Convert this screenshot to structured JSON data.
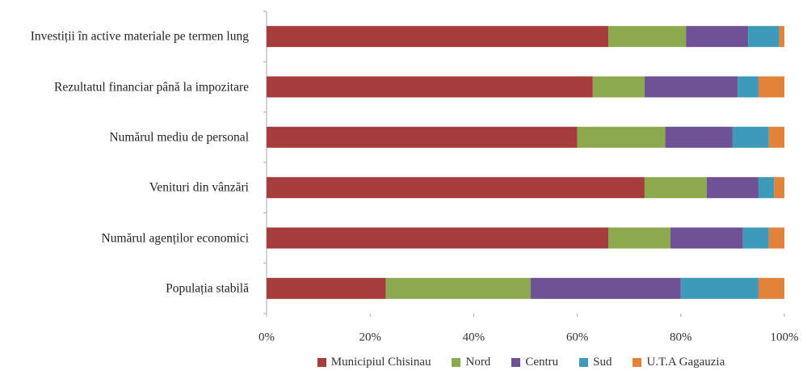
{
  "chart_data": {
    "type": "stacked-bar-horizontal",
    "categories": [
      "Investiții în active materiale pe termen lung",
      "Rezultatul financiar până la impozitare",
      "Numărul mediu de personal",
      "Venituri din vânzări",
      "Numărul agenților economici",
      "Populația stabilă"
    ],
    "series": [
      {
        "name": "Municipiul Chisinau",
        "color": "#a63c3b",
        "values": [
          66,
          63,
          60,
          73,
          66,
          23
        ]
      },
      {
        "name": "Nord",
        "color": "#8caa4d",
        "values": [
          15,
          10,
          17,
          12,
          12,
          28
        ]
      },
      {
        "name": "Centru",
        "color": "#6f5196",
        "values": [
          12,
          18,
          13,
          10,
          14,
          29
        ]
      },
      {
        "name": "Sud",
        "color": "#3d9bb9",
        "values": [
          6,
          4,
          7,
          3,
          5,
          15
        ]
      },
      {
        "name": "U.T.A Gagauzia",
        "color": "#e2823b",
        "values": [
          1,
          5,
          3,
          2,
          3,
          5
        ]
      }
    ],
    "xlim": [
      0,
      100
    ],
    "xticks": [
      {
        "value": 0,
        "label": "0%"
      },
      {
        "value": 20,
        "label": "20%"
      },
      {
        "value": 40,
        "label": "40%"
      },
      {
        "value": 60,
        "label": "60%"
      },
      {
        "value": 80,
        "label": "80%"
      },
      {
        "value": 100,
        "label": "100%"
      }
    ],
    "legend": "bottom"
  }
}
